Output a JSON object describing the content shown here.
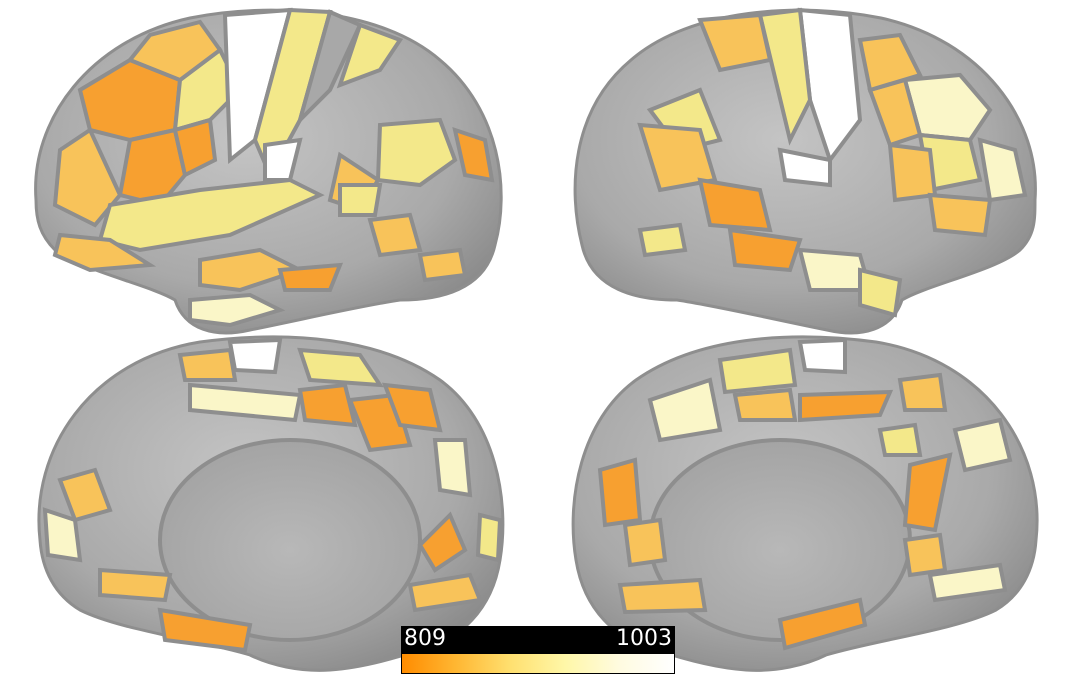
{
  "colorbar": {
    "min_label": "809",
    "max_label": "1003",
    "colors": [
      "#ff8c00",
      "#ffb733",
      "#ffe070",
      "#fff7a8",
      "#fffbe0",
      "#ffffff"
    ]
  },
  "views": [
    "left-lateral",
    "right-lateral",
    "left-medial",
    "right-medial"
  ],
  "colors": {
    "cortex_gray": "#a8a8a8",
    "parcel_border": "#8e8e8e",
    "orange": "#f7a030",
    "light_orange": "#f8c35a",
    "yellow": "#f3e88a",
    "pale_yellow": "#faf6c8",
    "white": "#ffffff"
  }
}
